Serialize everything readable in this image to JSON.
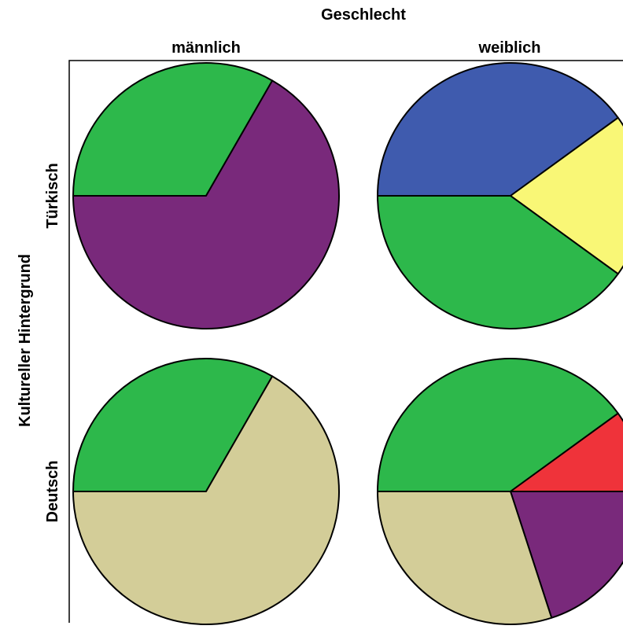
{
  "chart_data": {
    "type": "pie",
    "title": "Geschlecht",
    "ylabel": "Kultureller Hintergrund",
    "columns": [
      "männlich",
      "weiblich"
    ],
    "rows": [
      "Türkisch",
      "Deutsch"
    ],
    "panels": [
      {
        "row": "Türkisch",
        "column": "männlich",
        "slices": [
          {
            "value": 0.333,
            "color": "#2DB84B"
          },
          {
            "value": 0.667,
            "color": "#79297B"
          }
        ]
      },
      {
        "row": "Türkisch",
        "column": "weiblich",
        "slices": [
          {
            "value": 0.4,
            "color": "#3F5BAE"
          },
          {
            "value": 0.2,
            "color": "#F9F776"
          },
          {
            "value": 0.4,
            "color": "#2DB84B"
          }
        ]
      },
      {
        "row": "Deutsch",
        "column": "männlich",
        "slices": [
          {
            "value": 0.333,
            "color": "#2DB84B"
          },
          {
            "value": 0.667,
            "color": "#D3CD98"
          }
        ]
      },
      {
        "row": "Deutsch",
        "column": "weiblich",
        "slices": [
          {
            "value": 0.4,
            "color": "#2DB84B"
          },
          {
            "value": 0.1,
            "color": "#EF333A"
          },
          {
            "value": 0.2,
            "color": "#79297B"
          },
          {
            "value": 0.3,
            "color": "#D3CD98"
          }
        ]
      }
    ]
  }
}
